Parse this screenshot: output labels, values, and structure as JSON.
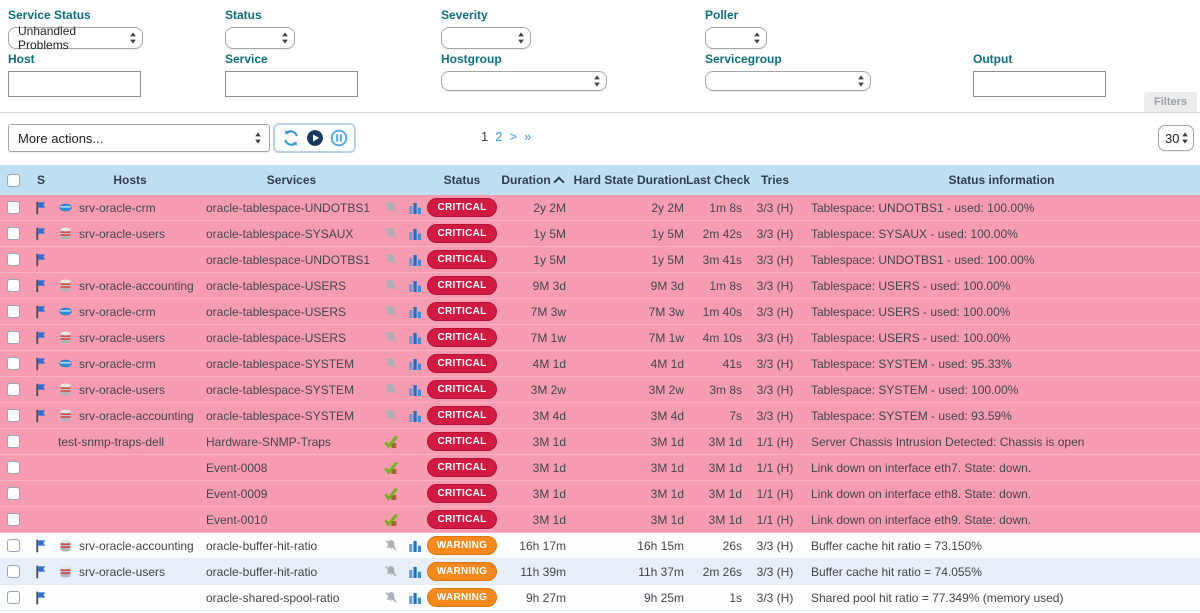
{
  "colors": {
    "teal": "#0d6e7d",
    "header_bg": "#bfe0f2",
    "pink": "#f89cb2",
    "critical": "#d11a42",
    "warning": "#f5891d",
    "link": "#3d9be0"
  },
  "filters": {
    "fields": [
      {
        "label": "Service Status",
        "type": "select",
        "value": "Unhandled Problems"
      },
      {
        "label": "Status",
        "type": "select",
        "value": ""
      },
      {
        "label": "Severity",
        "type": "select",
        "value": ""
      },
      {
        "label": "Poller",
        "type": "select",
        "value": ""
      },
      {
        "label": "Host",
        "type": "input",
        "value": ""
      },
      {
        "label": "Service",
        "type": "input",
        "value": ""
      },
      {
        "label": "Hostgroup",
        "type": "select",
        "value": ""
      },
      {
        "label": "Servicegroup",
        "type": "select",
        "value": ""
      },
      {
        "label": "Output",
        "type": "input",
        "value": ""
      }
    ],
    "filters_button_label": "Filters"
  },
  "toolbar": {
    "more_actions_label": "More actions...",
    "pagination": {
      "items": [
        {
          "label": "1",
          "current": true
        },
        {
          "label": "2",
          "current": false
        },
        {
          "label": ">",
          "current": false
        },
        {
          "label": "»",
          "current": false
        }
      ]
    },
    "page_size": "30"
  },
  "table": {
    "columns": [
      {
        "key": "check",
        "label": "",
        "type": "checkbox"
      },
      {
        "key": "s",
        "label": "S"
      },
      {
        "key": "hosts",
        "label": "Hosts"
      },
      {
        "key": "services",
        "label": "Services"
      },
      {
        "key": "icons",
        "label": ""
      },
      {
        "key": "status",
        "label": "Status"
      },
      {
        "key": "duration",
        "label": "Duration",
        "sorted": true
      },
      {
        "key": "hard",
        "label": "Hard State Duration"
      },
      {
        "key": "last",
        "label": "Last Check"
      },
      {
        "key": "tries",
        "label": "Tries"
      },
      {
        "key": "info",
        "label": "Status information"
      }
    ],
    "rows": [
      {
        "checkbox": true,
        "flag": true,
        "host_icon": "disk",
        "host": "srv-oracle-crm",
        "service": "oracle-tablespace-UNDOTBS1",
        "icons": "bell_chart",
        "status": "CRITICAL",
        "tone": "pink",
        "duration": "2y 2M",
        "hard": "2y 2M",
        "last": "1m 8s",
        "tries": "3/3 (H)",
        "info": "Tablespace: UNDOTBS1 - used: 100.00%"
      },
      {
        "checkbox": true,
        "flag": true,
        "host_icon": "db",
        "host": "srv-oracle-users",
        "service": "oracle-tablespace-SYSAUX",
        "icons": "bell_chart",
        "status": "CRITICAL",
        "tone": "pink",
        "duration": "1y 5M",
        "hard": "1y 5M",
        "last": "2m 42s",
        "tries": "3/3 (H)",
        "info": "Tablespace: SYSAUX - used: 100.00%"
      },
      {
        "checkbox": true,
        "flag": true,
        "host_icon": null,
        "host": "",
        "service": "oracle-tablespace-UNDOTBS1",
        "icons": "bell_chart",
        "status": "CRITICAL",
        "tone": "pink",
        "duration": "1y 5M",
        "hard": "1y 5M",
        "last": "3m 41s",
        "tries": "3/3 (H)",
        "info": "Tablespace: UNDOTBS1 - used: 100.00%"
      },
      {
        "checkbox": true,
        "flag": true,
        "host_icon": "db",
        "host": "srv-oracle-accounting",
        "service": "oracle-tablespace-USERS",
        "icons": "bell_chart",
        "status": "CRITICAL",
        "tone": "pink",
        "duration": "9M 3d",
        "hard": "9M 3d",
        "last": "1m 8s",
        "tries": "3/3 (H)",
        "info": "Tablespace: USERS - used: 100.00%"
      },
      {
        "checkbox": true,
        "flag": true,
        "host_icon": "disk",
        "host": "srv-oracle-crm",
        "service": "oracle-tablespace-USERS",
        "icons": "bell_chart",
        "status": "CRITICAL",
        "tone": "pink",
        "duration": "7M 3w",
        "hard": "7M 3w",
        "last": "1m 40s",
        "tries": "3/3 (H)",
        "info": "Tablespace: USERS - used: 100.00%"
      },
      {
        "checkbox": true,
        "flag": true,
        "host_icon": "db",
        "host": "srv-oracle-users",
        "service": "oracle-tablespace-USERS",
        "icons": "bell_chart",
        "status": "CRITICAL",
        "tone": "pink",
        "duration": "7M 1w",
        "hard": "7M 1w",
        "last": "4m 10s",
        "tries": "3/3 (H)",
        "info": "Tablespace: USERS - used: 100.00%"
      },
      {
        "checkbox": true,
        "flag": true,
        "host_icon": "disk",
        "host": "srv-oracle-crm",
        "service": "oracle-tablespace-SYSTEM",
        "icons": "bell_chart",
        "status": "CRITICAL",
        "tone": "pink",
        "duration": "4M 1d",
        "hard": "4M 1d",
        "last": "41s",
        "tries": "3/3 (H)",
        "info": "Tablespace: SYSTEM - used: 95.33%"
      },
      {
        "checkbox": true,
        "flag": true,
        "host_icon": "db",
        "host": "srv-oracle-users",
        "service": "oracle-tablespace-SYSTEM",
        "icons": "bell_chart",
        "status": "CRITICAL",
        "tone": "pink",
        "duration": "3M 2w",
        "hard": "3M 2w",
        "last": "3m 8s",
        "tries": "3/3 (H)",
        "info": "Tablespace: SYSTEM - used: 100.00%"
      },
      {
        "checkbox": true,
        "flag": true,
        "host_icon": "db",
        "host": "srv-oracle-accounting",
        "service": "oracle-tablespace-SYSTEM",
        "icons": "bell_chart",
        "status": "CRITICAL",
        "tone": "pink",
        "duration": "3M 4d",
        "hard": "3M 4d",
        "last": "7s",
        "tries": "3/3 (H)",
        "info": "Tablespace: SYSTEM - used: 93.59%"
      },
      {
        "checkbox": true,
        "flag": false,
        "host_icon": null,
        "host": "test-snmp-traps-dell",
        "service": "Hardware-SNMP-Traps",
        "icons": "check",
        "status": "CRITICAL",
        "tone": "pink",
        "duration": "3M 1d",
        "hard": "3M 1d",
        "last": "3M 1d",
        "tries": "1/1 (H)",
        "info": "Server Chassis Intrusion Detected: Chassis is open"
      },
      {
        "checkbox": true,
        "flag": false,
        "host_icon": null,
        "host": "",
        "service": "Event-0008",
        "icons": "check",
        "status": "CRITICAL",
        "tone": "pink",
        "duration": "3M 1d",
        "hard": "3M 1d",
        "last": "3M 1d",
        "tries": "1/1 (H)",
        "info": "Link down on interface eth7. State: down."
      },
      {
        "checkbox": true,
        "flag": false,
        "host_icon": null,
        "host": "",
        "service": "Event-0009",
        "icons": "check",
        "status": "CRITICAL",
        "tone": "pink",
        "duration": "3M 1d",
        "hard": "3M 1d",
        "last": "3M 1d",
        "tries": "1/1 (H)",
        "info": "Link down on interface eth8. State: down."
      },
      {
        "checkbox": true,
        "flag": false,
        "host_icon": null,
        "host": "",
        "service": "Event-0010",
        "icons": "check",
        "status": "CRITICAL",
        "tone": "pink",
        "duration": "3M 1d",
        "hard": "3M 1d",
        "last": "3M 1d",
        "tries": "1/1 (H)",
        "info": "Link down on interface eth9. State: down."
      },
      {
        "checkbox": true,
        "flag": true,
        "host_icon": "db",
        "host": "srv-oracle-accounting",
        "service": "oracle-buffer-hit-ratio",
        "icons": "bell_chart",
        "status": "WARNING",
        "tone": "white",
        "duration": "16h 17m",
        "hard": "16h 15m",
        "last": "26s",
        "tries": "3/3 (H)",
        "info": "Buffer cache hit ratio = 73.150%"
      },
      {
        "checkbox": true,
        "flag": true,
        "host_icon": "db",
        "host": "srv-oracle-users",
        "service": "oracle-buffer-hit-ratio",
        "icons": "bell_chart",
        "status": "WARNING",
        "tone": "blue",
        "duration": "11h 39m",
        "hard": "11h 37m",
        "last": "2m 26s",
        "tries": "3/3 (H)",
        "info": "Buffer cache hit ratio = 74.055%"
      },
      {
        "checkbox": true,
        "flag": true,
        "host_icon": null,
        "host": "",
        "service": "oracle-shared-spool-ratio",
        "icons": "bell_chart",
        "status": "WARNING",
        "tone": "white",
        "duration": "9h 27m",
        "hard": "9h 25m",
        "last": "1s",
        "tries": "3/3 (H)",
        "info": "Shared pool hit ratio = 77.349% (memory used)"
      }
    ]
  }
}
